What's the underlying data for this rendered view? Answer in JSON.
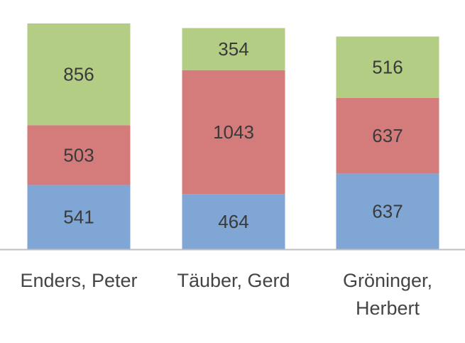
{
  "chart_data": {
    "type": "bar",
    "stacked": true,
    "categories": [
      [
        "Enders, Peter"
      ],
      [
        "Täuber, Gerd"
      ],
      [
        "Gröninger,",
        "Herbert"
      ]
    ],
    "series": [
      {
        "values": [
          541,
          464,
          637
        ],
        "color": "#7fa6d4"
      },
      {
        "values": [
          503,
          1043,
          637
        ],
        "color": "#d47b7b"
      },
      {
        "values": [
          856,
          354,
          516
        ],
        "color": "#b3cd84"
      }
    ],
    "ylim": [
      0,
      1900
    ],
    "grid": false,
    "legend": "none",
    "axis_color": "#bfbfbf"
  }
}
